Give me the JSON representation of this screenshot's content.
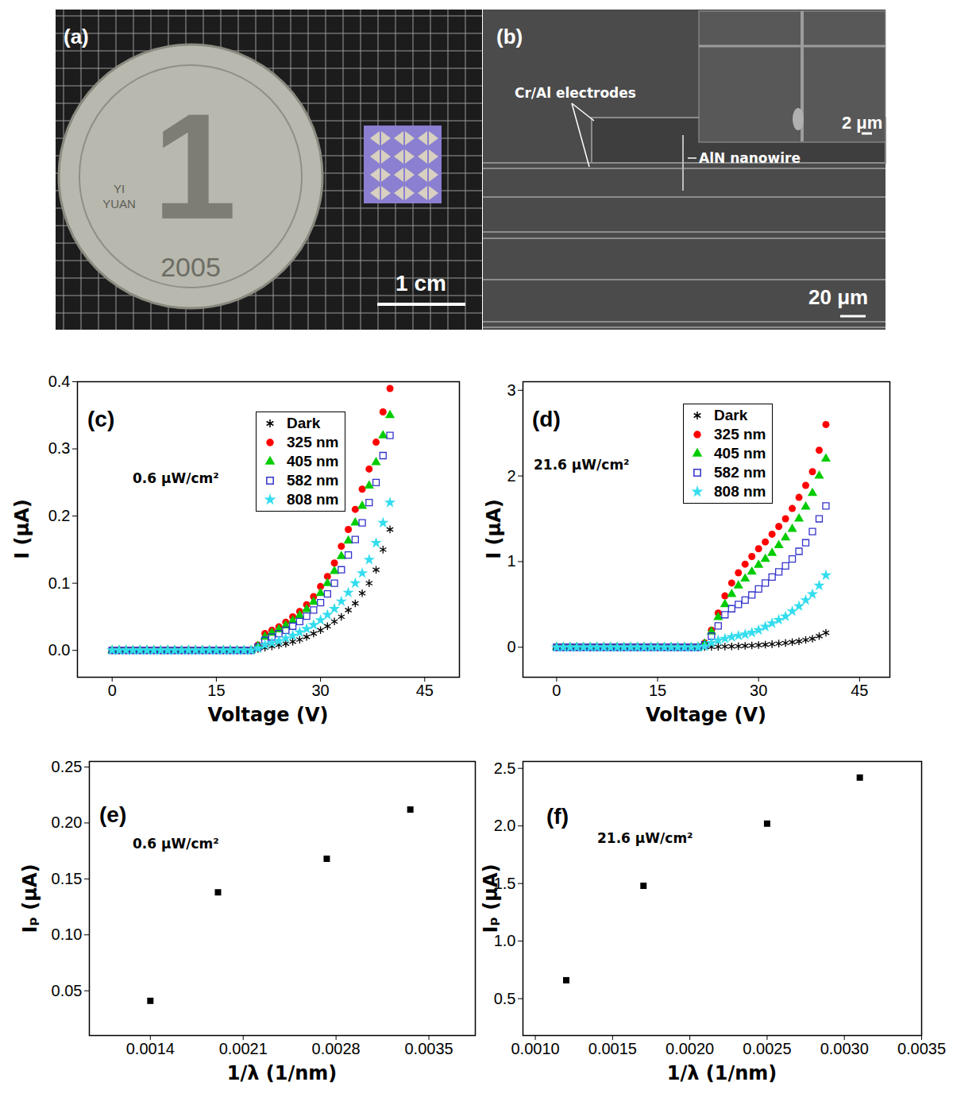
{
  "photos": [
    {
      "panel": "(a)",
      "scale_bar": "1 cm",
      "coin_texts": [
        "1",
        "YI",
        "YUAN",
        "2005"
      ]
    },
    {
      "panel": "(b)",
      "annotations": [
        "Cr/Al electrodes",
        "AlN nanowire"
      ],
      "scale_bar": "20 μm",
      "inset_scale_bar": "2 μm"
    }
  ],
  "chart_data": [
    {
      "type": "scatter",
      "title": "(c)",
      "annotation": "0.6 μW/cm²",
      "xlabel": "Voltage (V)",
      "ylabel": "I (μA)",
      "xlim": [
        -5,
        50
      ],
      "xticks": [
        0,
        15,
        30,
        45
      ],
      "ylim": [
        -0.04,
        0.4
      ],
      "yticks": [
        {
          "value": 0,
          "label": "0.0"
        },
        0.1,
        0.2,
        0.3,
        0.4
      ],
      "legend": "top-right",
      "x": [
        0,
        1,
        2,
        3,
        4,
        5,
        6,
        7,
        8,
        9,
        10,
        11,
        12,
        13,
        14,
        15,
        16,
        17,
        18,
        19,
        20,
        21,
        22,
        23,
        24,
        25,
        26,
        27,
        28,
        29,
        30,
        31,
        32,
        33,
        34,
        35,
        36,
        37,
        38,
        39,
        40
      ],
      "series": [
        {
          "name": "Dark",
          "color": "#000000",
          "marker": "asterisk",
          "values": [
            0,
            0,
            0,
            0,
            0,
            0,
            0,
            0,
            0,
            0,
            0,
            0,
            0,
            0,
            0,
            0,
            0,
            0,
            0,
            0,
            0,
            0.002,
            0.004,
            0.006,
            0.008,
            0.01,
            0.013,
            0.016,
            0.02,
            0.025,
            0.03,
            0.036,
            0.043,
            0.05,
            0.06,
            0.07,
            0.085,
            0.1,
            0.12,
            0.15,
            0.18
          ]
        },
        {
          "name": "325 nm",
          "color": "#ff0000",
          "marker": "circle",
          "values": [
            0,
            0,
            0,
            0,
            0,
            0,
            0,
            0,
            0,
            0,
            0,
            0,
            0,
            0,
            0,
            0,
            0,
            0,
            0,
            0,
            0,
            0.008,
            0.025,
            0.03,
            0.035,
            0.042,
            0.05,
            0.058,
            0.068,
            0.08,
            0.095,
            0.11,
            0.13,
            0.155,
            0.18,
            0.21,
            0.24,
            0.27,
            0.31,
            0.355,
            0.39
          ]
        },
        {
          "name": "405 nm",
          "color": "#00cc00",
          "marker": "triangle",
          "values": [
            0,
            0,
            0,
            0,
            0,
            0,
            0,
            0,
            0,
            0,
            0,
            0,
            0,
            0,
            0,
            0,
            0,
            0,
            0,
            0,
            0,
            0.006,
            0.02,
            0.026,
            0.031,
            0.037,
            0.044,
            0.052,
            0.061,
            0.072,
            0.085,
            0.1,
            0.118,
            0.14,
            0.163,
            0.19,
            0.215,
            0.245,
            0.28,
            0.32,
            0.35
          ]
        },
        {
          "name": "582 nm",
          "color": "#3333cc",
          "marker": "square-open",
          "values": [
            0,
            0,
            0,
            0,
            0,
            0,
            0,
            0,
            0,
            0,
            0,
            0,
            0,
            0,
            0,
            0,
            0,
            0,
            0,
            0,
            0,
            0.005,
            0.015,
            0.02,
            0.025,
            0.03,
            0.036,
            0.043,
            0.051,
            0.06,
            0.071,
            0.084,
            0.1,
            0.12,
            0.142,
            0.165,
            0.19,
            0.22,
            0.25,
            0.29,
            0.32
          ]
        },
        {
          "name": "808 nm",
          "color": "#33ddee",
          "marker": "star",
          "values": [
            0,
            0,
            0,
            0,
            0,
            0,
            0,
            0,
            0,
            0,
            0,
            0,
            0,
            0,
            0,
            0,
            0,
            0,
            0,
            0,
            0,
            0.003,
            0.008,
            0.011,
            0.014,
            0.018,
            0.022,
            0.027,
            0.032,
            0.038,
            0.045,
            0.053,
            0.062,
            0.073,
            0.086,
            0.1,
            0.115,
            0.135,
            0.16,
            0.19,
            0.22
          ]
        }
      ]
    },
    {
      "type": "scatter",
      "title": "(d)",
      "annotation": "21.6 μW/cm²",
      "xlabel": "Voltage (V)",
      "ylabel": "I (μA)",
      "xlim": [
        -5,
        49.5
      ],
      "xticks": [
        0,
        15,
        30,
        45
      ],
      "ylim": [
        -0.35,
        3.1
      ],
      "yticks": [
        0,
        1,
        2,
        3
      ],
      "legend": "top-right",
      "x": [
        0,
        1,
        2,
        3,
        4,
        5,
        6,
        7,
        8,
        9,
        10,
        11,
        12,
        13,
        14,
        15,
        16,
        17,
        18,
        19,
        20,
        21,
        22,
        23,
        24,
        25,
        26,
        27,
        28,
        29,
        30,
        31,
        32,
        33,
        34,
        35,
        36,
        37,
        38,
        39,
        40
      ],
      "series": [
        {
          "name": "Dark",
          "color": "#000000",
          "marker": "asterisk",
          "values": [
            0,
            0,
            0,
            0,
            0,
            0,
            0,
            0,
            0,
            0,
            0,
            0,
            0,
            0,
            0,
            0,
            0,
            0,
            0,
            0,
            0,
            0,
            0.002,
            0.004,
            0.006,
            0.008,
            0.01,
            0.013,
            0.016,
            0.02,
            0.025,
            0.03,
            0.036,
            0.043,
            0.05,
            0.06,
            0.07,
            0.085,
            0.1,
            0.13,
            0.17
          ]
        },
        {
          "name": "325 nm",
          "color": "#ff0000",
          "marker": "circle",
          "values": [
            0,
            0,
            0,
            0,
            0,
            0,
            0,
            0,
            0,
            0,
            0,
            0,
            0,
            0,
            0,
            0,
            0,
            0,
            0,
            0,
            0,
            0,
            0.05,
            0.2,
            0.4,
            0.6,
            0.75,
            0.87,
            0.97,
            1.06,
            1.15,
            1.23,
            1.32,
            1.41,
            1.5,
            1.62,
            1.75,
            1.89,
            2.05,
            2.3,
            2.6
          ]
        },
        {
          "name": "405 nm",
          "color": "#00cc00",
          "marker": "triangle",
          "values": [
            0,
            0,
            0,
            0,
            0,
            0,
            0,
            0,
            0,
            0,
            0,
            0,
            0,
            0,
            0,
            0,
            0,
            0,
            0,
            0,
            0,
            0,
            0.04,
            0.18,
            0.35,
            0.5,
            0.62,
            0.72,
            0.8,
            0.88,
            0.96,
            1.03,
            1.1,
            1.19,
            1.28,
            1.38,
            1.5,
            1.64,
            1.8,
            2.0,
            2.2
          ]
        },
        {
          "name": "582 nm",
          "color": "#3333cc",
          "marker": "square-open",
          "values": [
            0,
            0,
            0,
            0,
            0,
            0,
            0,
            0,
            0,
            0,
            0,
            0,
            0,
            0,
            0,
            0,
            0,
            0,
            0,
            0,
            0,
            0,
            0.03,
            0.13,
            0.25,
            0.38,
            0.45,
            0.5,
            0.55,
            0.61,
            0.68,
            0.75,
            0.82,
            0.88,
            0.95,
            1.03,
            1.12,
            1.22,
            1.35,
            1.5,
            1.65
          ]
        },
        {
          "name": "808 nm",
          "color": "#33ddee",
          "marker": "star",
          "values": [
            0,
            0,
            0,
            0,
            0,
            0,
            0,
            0,
            0,
            0,
            0,
            0,
            0,
            0,
            0,
            0,
            0,
            0,
            0,
            0,
            0,
            0,
            0.01,
            0.05,
            0.08,
            0.1,
            0.12,
            0.135,
            0.15,
            0.17,
            0.2,
            0.24,
            0.28,
            0.32,
            0.36,
            0.42,
            0.48,
            0.55,
            0.62,
            0.72,
            0.84
          ]
        }
      ]
    },
    {
      "type": "scatter",
      "title": "(e)",
      "annotation": "0.6 μW/cm²",
      "xlabel": "1/λ (1/nm)",
      "ylabel": "Iₚ (μA)",
      "xlim": [
        0.00094,
        0.00385
      ],
      "xticks": [
        0.0014,
        0.0021,
        0.0028,
        0.0035
      ],
      "ylim": [
        0.01,
        0.255
      ],
      "yticks": [
        0.05,
        {
          "value": 0.1,
          "label": "0.10"
        },
        0.15,
        {
          "value": 0.2,
          "label": "0.20"
        },
        0.25
      ],
      "color": "#000000",
      "marker": "square",
      "x": [
        0.0014,
        0.00191,
        0.00273,
        0.00336
      ],
      "values": [
        0.041,
        0.138,
        0.168,
        0.212
      ]
    },
    {
      "type": "scatter",
      "title": "(f)",
      "annotation": "21.6 μW/cm²",
      "xlabel": "1/λ (1/nm)",
      "ylabel": "Iₚ (μA)",
      "xlim": [
        0.00092,
        0.0035
      ],
      "xticks": [
        {
          "value": 0.001,
          "label": "0.0010"
        },
        0.0015,
        {
          "value": 0.002,
          "label": "0.0020"
        },
        0.0025,
        {
          "value": 0.003,
          "label": "0.0030"
        },
        0.0035
      ],
      "ylim": [
        0.18,
        2.56
      ],
      "yticks": [
        0.5,
        {
          "value": 1,
          "label": "1.0"
        },
        1.5,
        {
          "value": 2,
          "label": "2.0"
        },
        2.5
      ],
      "color": "#000000",
      "marker": "square",
      "x": [
        0.0012,
        0.0017,
        0.0025,
        0.0031
      ],
      "values": [
        0.66,
        1.48,
        2.02,
        2.42
      ]
    }
  ]
}
